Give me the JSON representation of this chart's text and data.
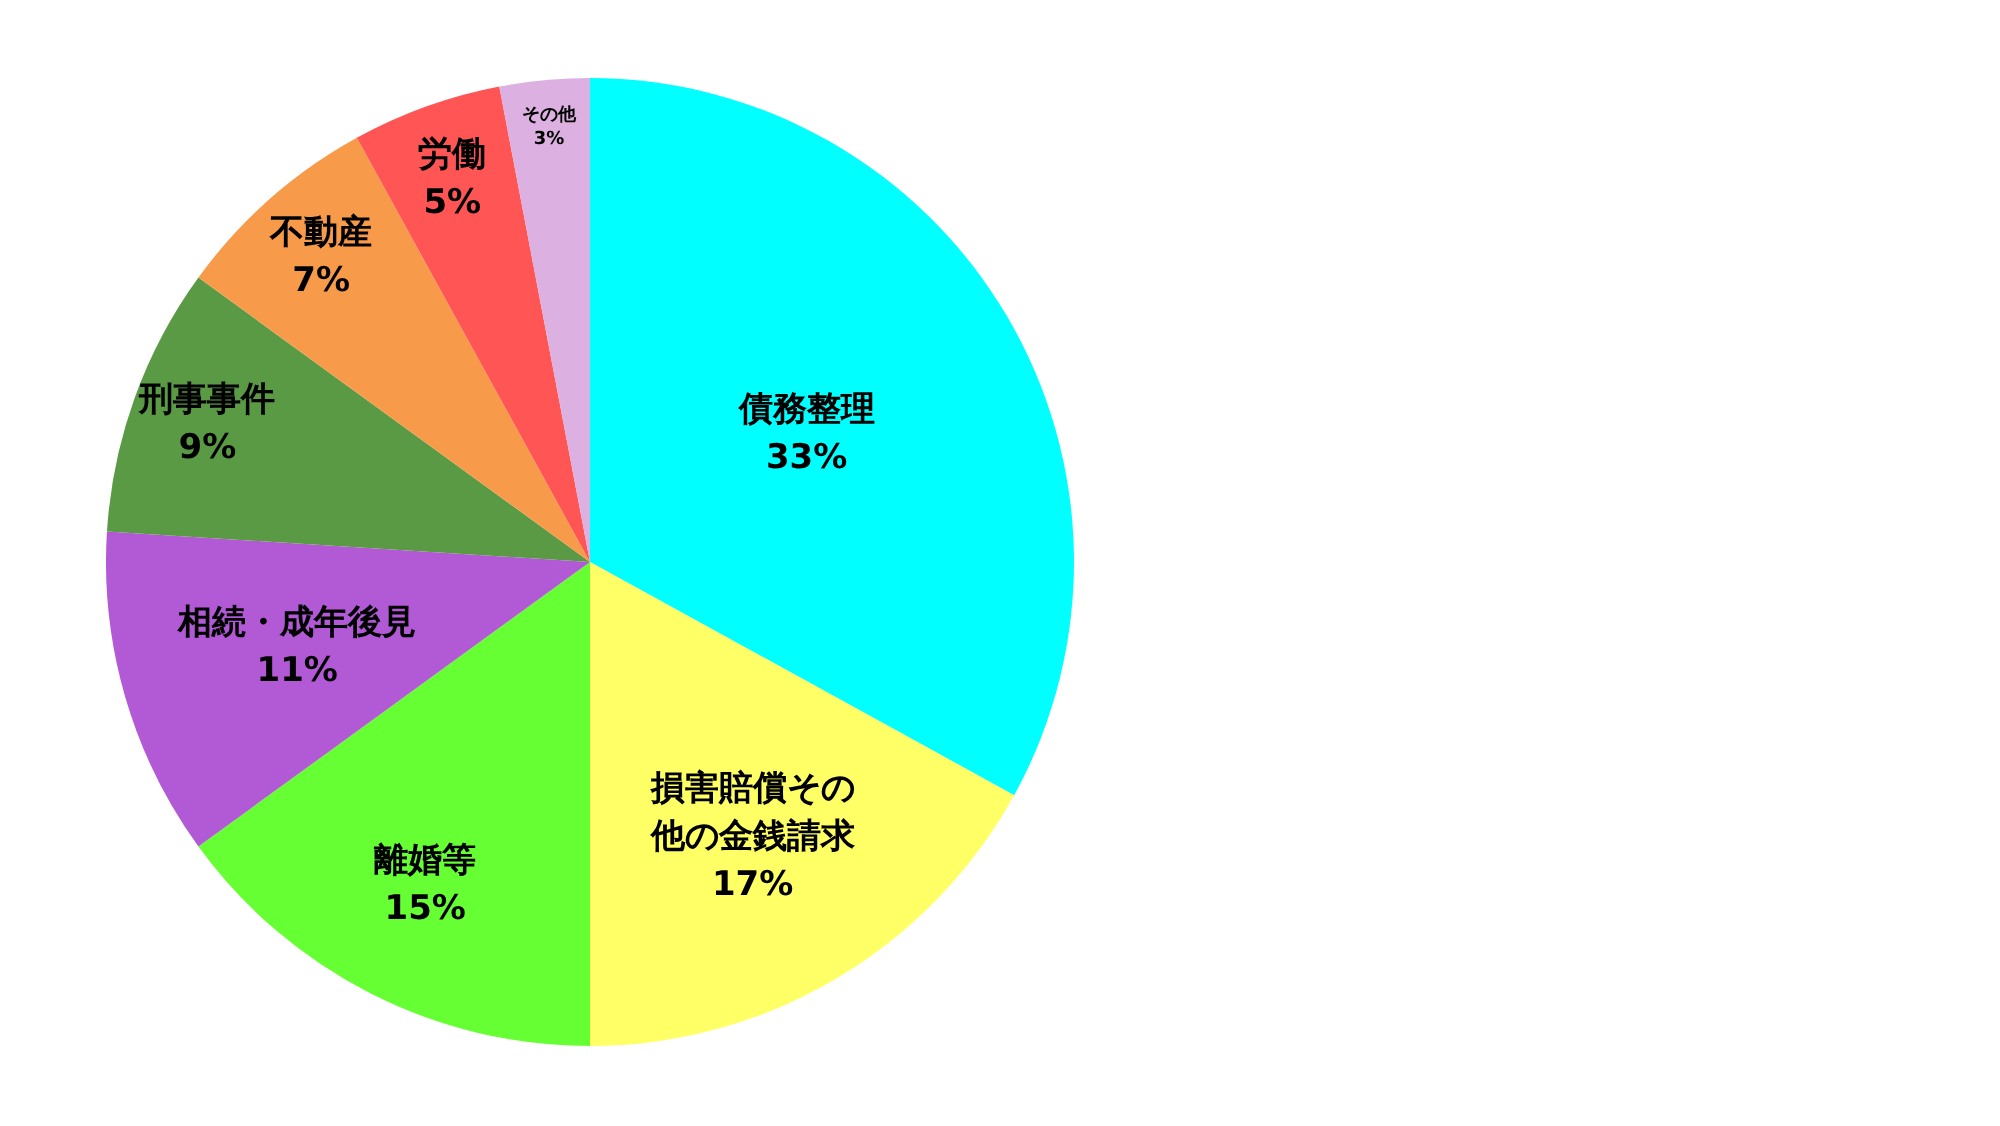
{
  "chart_data": {
    "type": "pie",
    "categories": [
      "債務整理",
      "損害賠償その他の金銭請求",
      "離婚等",
      "相続・成年後見",
      "刑事事件",
      "不動産",
      "労働",
      "その他"
    ],
    "values": [
      33,
      17,
      15,
      11,
      9,
      7,
      5,
      3
    ],
    "value_labels": [
      "33%",
      "17%",
      "15%",
      "11%",
      "9%",
      "7%",
      "5%",
      "3%"
    ],
    "colors": [
      "#00ffff",
      "#ffff66",
      "#66ff33",
      "#b259d6",
      "#5b9a45",
      "#f79b4b",
      "#ff5555",
      "#dcb0e0"
    ],
    "legend": false
  }
}
